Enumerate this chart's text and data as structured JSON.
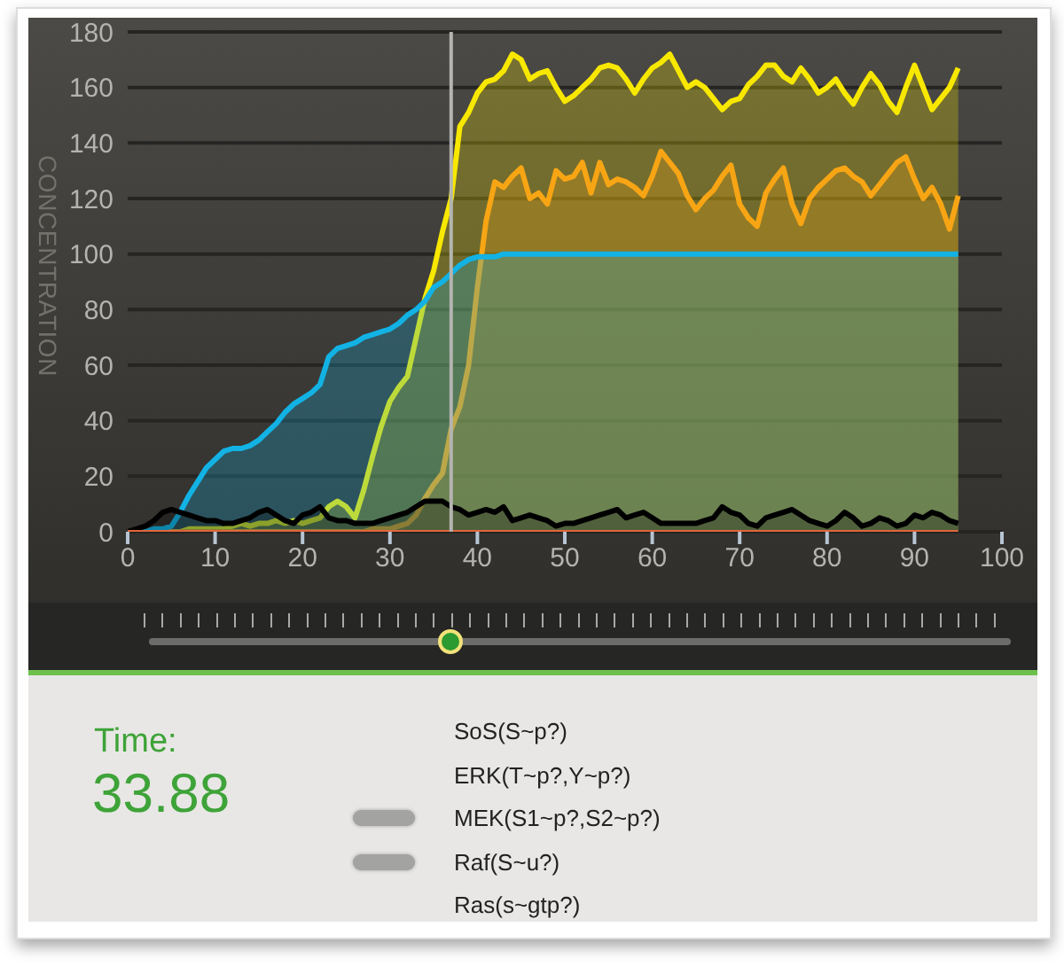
{
  "chart_data": {
    "type": "area",
    "ylabel": "CONCENTRATION",
    "xlim": [
      0,
      100
    ],
    "xticks": [
      0,
      10,
      20,
      30,
      40,
      50,
      60,
      70,
      80,
      90,
      100
    ],
    "ylim": [
      0,
      180
    ],
    "yticks": [
      0,
      20,
      40,
      60,
      80,
      100,
      120,
      140,
      160,
      180
    ],
    "grid": "y",
    "x": [
      0,
      1,
      2,
      3,
      4,
      5,
      6,
      7,
      8,
      9,
      10,
      11,
      12,
      13,
      14,
      15,
      16,
      17,
      18,
      19,
      20,
      21,
      22,
      23,
      24,
      25,
      26,
      27,
      28,
      29,
      30,
      31,
      32,
      33,
      34,
      35,
      36,
      37,
      38,
      39,
      40,
      41,
      42,
      43,
      44,
      45,
      46,
      47,
      48,
      49,
      50,
      51,
      52,
      53,
      54,
      55,
      56,
      57,
      58,
      59,
      60,
      61,
      62,
      63,
      64,
      65,
      66,
      67,
      68,
      69,
      70,
      71,
      72,
      73,
      74,
      75,
      76,
      77,
      78,
      79,
      80,
      81,
      82,
      83,
      84,
      85,
      86,
      87,
      88,
      89,
      90,
      91,
      92,
      93,
      94,
      95
    ],
    "series": [
      {
        "color": "#f8e800",
        "values": [
          0,
          0,
          0,
          0,
          0,
          0,
          0,
          1,
          1,
          1,
          1,
          1,
          2,
          3,
          2,
          3,
          3,
          4,
          3,
          4,
          3,
          4,
          5,
          9,
          11,
          9,
          5,
          15,
          27,
          38,
          47,
          52,
          56,
          70,
          84,
          94,
          108,
          120,
          146,
          151,
          158,
          162,
          163,
          166,
          172,
          170,
          163,
          165,
          166,
          160,
          155,
          157,
          160,
          163,
          167,
          168,
          167,
          163,
          158,
          163,
          167,
          169,
          172,
          166,
          160,
          162,
          160,
          156,
          152,
          155,
          156,
          161,
          164,
          168,
          168,
          164,
          162,
          167,
          163,
          158,
          160,
          163,
          158,
          154,
          160,
          165,
          161,
          155,
          151,
          160,
          168,
          160,
          152,
          156,
          160,
          167
        ]
      },
      {
        "color": "#f7a514",
        "values": [
          0,
          0,
          0,
          0,
          0,
          0,
          0,
          0,
          0,
          0,
          0,
          0,
          0,
          0,
          0,
          0,
          0,
          0,
          0,
          0,
          0,
          0,
          0,
          0,
          0,
          0,
          0,
          0,
          1,
          1,
          1,
          2,
          3,
          6,
          12,
          17,
          21,
          37,
          45,
          60,
          88,
          112,
          126,
          124,
          128,
          131,
          120,
          122,
          118,
          130,
          127,
          128,
          133,
          122,
          133,
          125,
          127,
          126,
          124,
          121,
          128,
          137,
          133,
          129,
          121,
          116,
          120,
          123,
          128,
          132,
          118,
          113,
          110,
          122,
          127,
          131,
          118,
          111,
          120,
          124,
          127,
          130,
          131,
          128,
          126,
          121,
          125,
          129,
          133,
          135,
          127,
          120,
          124,
          118,
          109,
          121
        ]
      },
      {
        "color": "#12b2e4",
        "values": [
          0,
          0,
          0,
          1,
          1,
          2,
          7,
          13,
          18,
          23,
          26,
          29,
          30,
          30,
          31,
          33,
          36,
          39,
          43,
          46,
          48,
          50,
          53,
          63,
          66,
          67,
          68,
          70,
          71,
          72,
          73,
          75,
          78,
          80,
          83,
          88,
          90,
          93,
          96,
          98,
          99,
          99,
          99,
          100,
          100,
          100,
          100,
          100,
          100,
          100,
          100,
          100,
          100,
          100,
          100,
          100,
          100,
          100,
          100,
          100,
          100,
          100,
          100,
          100,
          100,
          100,
          100,
          100,
          100,
          100,
          100,
          100,
          100,
          100,
          100,
          100,
          100,
          100,
          100,
          100,
          100,
          100,
          100,
          100,
          100,
          100,
          100,
          100,
          100,
          100,
          100,
          100,
          100,
          100,
          100,
          100
        ]
      },
      {
        "color": "#000000",
        "values": [
          0,
          1,
          2,
          4,
          7,
          8,
          7,
          6,
          5,
          4,
          4,
          3,
          3,
          4,
          5,
          7,
          8,
          6,
          4,
          3,
          6,
          7,
          9,
          5,
          4,
          4,
          3,
          3,
          3,
          4,
          5,
          6,
          7,
          9,
          11,
          11,
          11,
          9,
          8,
          6,
          7,
          8,
          7,
          9,
          4,
          5,
          6,
          5,
          4,
          2,
          3,
          3,
          4,
          5,
          6,
          7,
          8,
          5,
          6,
          7,
          5,
          3,
          3,
          3,
          3,
          3,
          4,
          5,
          9,
          7,
          6,
          3,
          2,
          5,
          6,
          7,
          8,
          6,
          4,
          3,
          2,
          4,
          7,
          5,
          2,
          3,
          5,
          4,
          2,
          3,
          6,
          5,
          7,
          6,
          4,
          3
        ]
      },
      {
        "type": "line",
        "color": "#e2653c",
        "values": [
          0,
          0,
          0,
          0,
          0,
          0,
          0,
          0,
          0,
          0,
          0,
          0,
          0,
          0,
          0,
          0,
          0,
          0,
          0,
          0,
          0,
          0,
          0,
          0,
          0,
          0,
          0,
          0,
          0,
          0,
          0,
          0,
          0,
          0,
          0,
          0,
          0,
          0,
          0,
          0,
          0,
          0,
          0,
          0,
          0,
          0,
          0,
          0,
          0,
          0,
          0,
          0,
          0,
          0,
          0,
          0,
          0,
          0,
          0,
          0,
          0,
          0,
          0,
          0,
          0,
          0,
          0,
          0,
          0,
          0,
          0,
          0,
          0,
          0,
          0,
          0,
          0,
          0,
          0,
          0,
          0,
          0,
          0,
          0,
          0,
          0,
          0,
          0,
          0,
          0,
          0,
          0,
          0,
          0,
          0,
          0
        ]
      }
    ],
    "ref_lines": [
      {
        "axis": "x",
        "value": 37,
        "color": "#b4b4b0"
      }
    ],
    "annotations": [
      "Time:",
      "33.88",
      "SoS(S~p?)",
      "ERK(T~p?,Y~p?)",
      "MEK(S1~p?,S2~p?)",
      "Raf(S~u?)",
      "Ras(s~gtp?)"
    ]
  }
}
